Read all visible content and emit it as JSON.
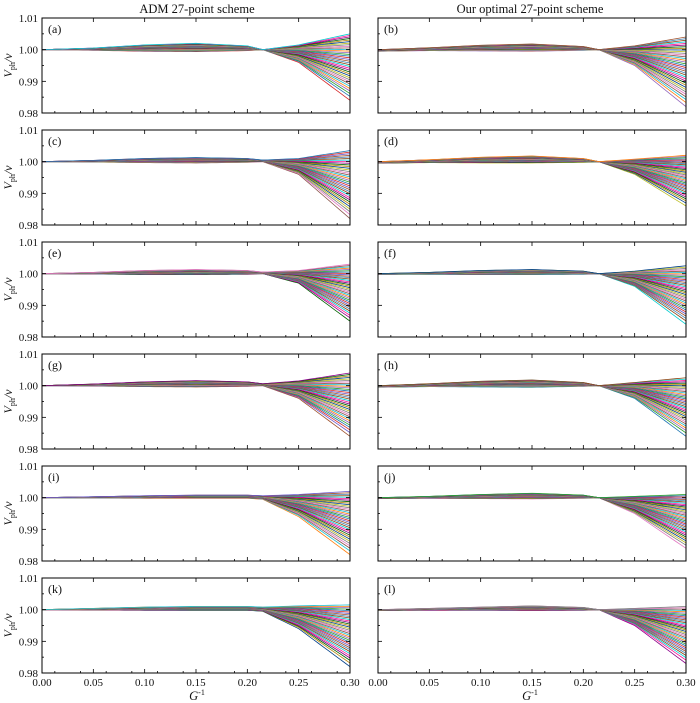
{
  "figure": {
    "column_titles": [
      "ADM 27-point scheme",
      "Our optimal 27-point scheme"
    ],
    "ylabel_main": "V",
    "ylabel_sub": "ph",
    "ylabel_tail": "/v",
    "xlabel_main": "G",
    "xlabel_sup": "-1"
  },
  "chart_data": {
    "type": "line",
    "layout": "6 rows x 2 columns of panels",
    "xlim": [
      0.0,
      0.3
    ],
    "ylim": [
      0.98,
      1.01
    ],
    "x_ticks": [
      "0.00",
      "0.05",
      "0.10",
      "0.15",
      "0.20",
      "0.25",
      "0.30"
    ],
    "y_ticks": [
      "0.98",
      "0.99",
      "1.00",
      "1.01"
    ],
    "grid": false,
    "legend": "none",
    "note": "each panel shows a family of ~40 dispersion curves (one per propagation direction); values estimated",
    "panels": [
      {
        "label": "(a)",
        "column": 0,
        "row": 0,
        "x": [
          0,
          0.05,
          0.1,
          0.15,
          0.2,
          0.215,
          0.25,
          0.3
        ],
        "upper_envelope": [
          1.0,
          1.0005,
          1.0015,
          1.002,
          1.0012,
          1.0,
          1.0015,
          1.005
        ],
        "lower_envelope": [
          1.0,
          0.9998,
          0.9995,
          0.9994,
          0.9997,
          1.0,
          0.996,
          0.984
        ]
      },
      {
        "label": "(b)",
        "column": 1,
        "row": 0,
        "x": [
          0,
          0.05,
          0.1,
          0.15,
          0.2,
          0.215,
          0.25,
          0.3
        ],
        "upper_envelope": [
          1.0,
          1.0006,
          1.0014,
          1.0018,
          1.001,
          1.0,
          1.0012,
          1.004
        ],
        "lower_envelope": [
          0.9995,
          0.9997,
          0.9996,
          0.9995,
          0.9998,
          1.0,
          0.995,
          0.982
        ]
      },
      {
        "label": "(c)",
        "column": 0,
        "row": 1,
        "x": [
          0,
          0.05,
          0.1,
          0.15,
          0.2,
          0.215,
          0.25,
          0.3
        ],
        "upper_envelope": [
          1.0,
          1.0004,
          1.001,
          1.0013,
          1.001,
          1.0005,
          1.001,
          1.0035
        ],
        "lower_envelope": [
          1.0,
          0.9999,
          0.9997,
          0.9996,
          0.9998,
          1.0,
          0.996,
          0.982
        ]
      },
      {
        "label": "(d)",
        "column": 1,
        "row": 1,
        "x": [
          0,
          0.05,
          0.1,
          0.15,
          0.2,
          0.215,
          0.25,
          0.3
        ],
        "upper_envelope": [
          1.0,
          1.0006,
          1.0014,
          1.0018,
          1.001,
          1.0,
          1.0008,
          1.002
        ],
        "lower_envelope": [
          0.9995,
          0.9997,
          0.9996,
          0.9996,
          0.9998,
          1.0,
          0.996,
          0.986
        ]
      },
      {
        "label": "(e)",
        "column": 0,
        "row": 2,
        "x": [
          0,
          0.05,
          0.1,
          0.15,
          0.2,
          0.215,
          0.25,
          0.3
        ],
        "upper_envelope": [
          1.0,
          1.0004,
          1.001,
          1.0013,
          1.001,
          1.0005,
          1.001,
          1.003
        ],
        "lower_envelope": [
          1.0,
          0.9999,
          0.9997,
          0.9997,
          0.9998,
          1.0,
          0.997,
          0.985
        ]
      },
      {
        "label": "(f)",
        "column": 1,
        "row": 2,
        "x": [
          0,
          0.05,
          0.1,
          0.15,
          0.2,
          0.215,
          0.25,
          0.3
        ],
        "upper_envelope": [
          1.0,
          1.0004,
          1.001,
          1.0013,
          1.0008,
          1.0,
          1.0008,
          1.0025
        ],
        "lower_envelope": [
          0.9998,
          0.9998,
          0.9997,
          0.9997,
          0.9998,
          1.0,
          0.996,
          0.984
        ]
      },
      {
        "label": "(g)",
        "column": 0,
        "row": 3,
        "x": [
          0,
          0.05,
          0.1,
          0.15,
          0.2,
          0.215,
          0.25,
          0.3
        ],
        "upper_envelope": [
          1.0,
          1.0005,
          1.0012,
          1.0016,
          1.0012,
          1.0006,
          1.0015,
          1.004
        ],
        "lower_envelope": [
          1.0,
          0.9999,
          0.9997,
          0.9996,
          0.9998,
          1.0,
          0.996,
          0.984
        ]
      },
      {
        "label": "(h)",
        "column": 1,
        "row": 3,
        "x": [
          0,
          0.05,
          0.1,
          0.15,
          0.2,
          0.215,
          0.25,
          0.3
        ],
        "upper_envelope": [
          1.0,
          1.0006,
          1.0014,
          1.0018,
          1.001,
          1.0,
          1.001,
          1.0025
        ],
        "lower_envelope": [
          0.9995,
          0.9997,
          0.9996,
          0.9995,
          0.9998,
          1.0,
          0.996,
          0.984
        ]
      },
      {
        "label": "(i)",
        "column": 0,
        "row": 4,
        "x": [
          0,
          0.05,
          0.1,
          0.15,
          0.2,
          0.215,
          0.25,
          0.3
        ],
        "upper_envelope": [
          1.0,
          1.0003,
          1.0006,
          1.0008,
          1.0008,
          1.0006,
          1.001,
          1.002
        ],
        "lower_envelope": [
          1.0,
          0.9999,
          0.9998,
          0.9998,
          0.9998,
          0.9995,
          0.994,
          0.982
        ]
      },
      {
        "label": "(j)",
        "column": 1,
        "row": 4,
        "x": [
          0,
          0.05,
          0.1,
          0.15,
          0.2,
          0.215,
          0.25,
          0.3
        ],
        "upper_envelope": [
          1.0,
          1.0004,
          1.001,
          1.0014,
          1.0008,
          1.0,
          1.0004,
          1.001
        ],
        "lower_envelope": [
          0.9997,
          0.9998,
          0.9997,
          0.9996,
          0.9998,
          1.0,
          0.995,
          0.984
        ]
      },
      {
        "label": "(k)",
        "column": 0,
        "row": 5,
        "x": [
          0,
          0.05,
          0.1,
          0.15,
          0.2,
          0.215,
          0.25,
          0.3
        ],
        "upper_envelope": [
          1.0,
          1.0004,
          1.0008,
          1.001,
          1.001,
          1.0008,
          1.0012,
          1.0015
        ],
        "lower_envelope": [
          1.0,
          0.9999,
          0.9998,
          0.9998,
          0.9998,
          0.9995,
          0.994,
          0.982
        ]
      },
      {
        "label": "(l)",
        "column": 1,
        "row": 5,
        "x": [
          0,
          0.05,
          0.1,
          0.15,
          0.2,
          0.215,
          0.25,
          0.3
        ],
        "upper_envelope": [
          1.0,
          1.0004,
          1.0008,
          1.0012,
          1.0007,
          1.0,
          1.0004,
          1.001
        ],
        "lower_envelope": [
          0.9997,
          0.9998,
          0.9998,
          0.9997,
          0.9998,
          1.0,
          0.995,
          0.983
        ]
      }
    ]
  }
}
